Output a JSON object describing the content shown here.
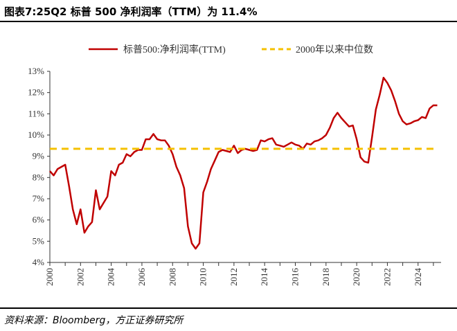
{
  "header": {
    "title": "图表7:25Q2 标普 500 净利润率（TTM）为 11.4%"
  },
  "footer": {
    "source": "资料来源：Bloomberg，方正证券研究所"
  },
  "colors": {
    "series_line": "#c00000",
    "median_line": "#f5c000",
    "axis": "#333333"
  },
  "chart_data": {
    "type": "line",
    "title": "",
    "xlabel": "",
    "ylabel": "",
    "x_range": [
      2000,
      2025.5
    ],
    "ylim": [
      4,
      13
    ],
    "y_ticks": [
      "4%",
      "5%",
      "6%",
      "7%",
      "8%",
      "9%",
      "10%",
      "11%",
      "12%",
      "13%"
    ],
    "x_ticks": [
      "2000",
      "2002",
      "2004",
      "2006",
      "2008",
      "2010",
      "2012",
      "2014",
      "2016",
      "2018",
      "2020",
      "2022",
      "2024"
    ],
    "grid": false,
    "legend_position": "top",
    "series": [
      {
        "name": "标普500:净利润率(TTM)",
        "style": "solid",
        "x": [
          2000.0,
          2000.25,
          2000.5,
          2000.75,
          2001.0,
          2001.25,
          2001.5,
          2001.75,
          2002.0,
          2002.25,
          2002.5,
          2002.75,
          2003.0,
          2003.25,
          2003.5,
          2003.75,
          2004.0,
          2004.25,
          2004.5,
          2004.75,
          2005.0,
          2005.25,
          2005.5,
          2005.75,
          2006.0,
          2006.25,
          2006.5,
          2006.75,
          2007.0,
          2007.25,
          2007.5,
          2007.75,
          2008.0,
          2008.25,
          2008.5,
          2008.75,
          2009.0,
          2009.25,
          2009.5,
          2009.75,
          2010.0,
          2010.25,
          2010.5,
          2010.75,
          2011.0,
          2011.25,
          2011.5,
          2011.75,
          2012.0,
          2012.25,
          2012.5,
          2012.75,
          2013.0,
          2013.25,
          2013.5,
          2013.75,
          2014.0,
          2014.25,
          2014.5,
          2014.75,
          2015.0,
          2015.25,
          2015.5,
          2015.75,
          2016.0,
          2016.25,
          2016.5,
          2016.75,
          2017.0,
          2017.25,
          2017.5,
          2017.75,
          2018.0,
          2018.25,
          2018.5,
          2018.75,
          2019.0,
          2019.25,
          2019.5,
          2019.75,
          2020.0,
          2020.25,
          2020.5,
          2020.75,
          2021.0,
          2021.25,
          2021.5,
          2021.75,
          2022.0,
          2022.25,
          2022.5,
          2022.75,
          2023.0,
          2023.25,
          2023.5,
          2023.75,
          2024.0,
          2024.25,
          2024.5,
          2024.75,
          2025.0,
          2025.25
        ],
        "values": [
          8.3,
          8.1,
          8.4,
          8.5,
          8.6,
          7.6,
          6.5,
          5.8,
          6.5,
          5.4,
          5.7,
          5.9,
          7.4,
          6.5,
          6.8,
          7.1,
          8.3,
          8.1,
          8.6,
          8.7,
          9.1,
          9.0,
          9.2,
          9.3,
          9.3,
          9.8,
          9.8,
          10.05,
          9.8,
          9.75,
          9.75,
          9.5,
          9.1,
          8.5,
          8.1,
          7.5,
          5.7,
          4.9,
          4.65,
          4.9,
          7.3,
          7.8,
          8.4,
          8.8,
          9.2,
          9.3,
          9.25,
          9.2,
          9.5,
          9.15,
          9.3,
          9.35,
          9.3,
          9.25,
          9.3,
          9.75,
          9.7,
          9.8,
          9.85,
          9.55,
          9.5,
          9.45,
          9.55,
          9.65,
          9.55,
          9.5,
          9.35,
          9.6,
          9.55,
          9.7,
          9.75,
          9.85,
          10.0,
          10.35,
          10.8,
          11.05,
          10.8,
          10.6,
          10.4,
          10.45,
          9.8,
          8.95,
          8.75,
          8.7,
          9.9,
          11.2,
          11.9,
          12.7,
          12.45,
          12.1,
          11.6,
          11.0,
          10.65,
          10.5,
          10.55,
          10.65,
          10.7,
          10.85,
          10.8,
          11.25,
          11.4,
          11.4
        ]
      },
      {
        "name": "2000年以来中位数",
        "style": "dashed",
        "x": [
          2000.0,
          2025.25
        ],
        "values": [
          9.35,
          9.35
        ]
      }
    ]
  }
}
